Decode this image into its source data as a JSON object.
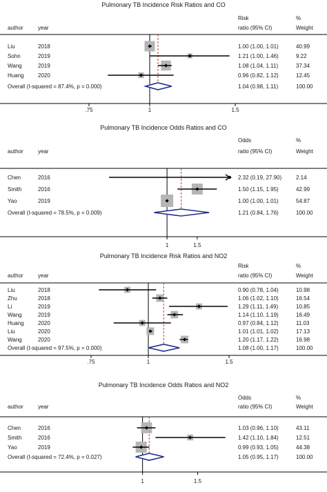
{
  "colors": {
    "text": "#1a1a1a",
    "axis": "#000000",
    "weight_box": "#b5b5b5",
    "point": "#000000",
    "ci_line": "#000000",
    "pooled_diamond": "#1f2e8f",
    "overall_ref_line": "#c0392b"
  },
  "chart_data": [
    {
      "type": "forest",
      "title": "Pulmonary TB Incidence Risk Ratios and CO",
      "headers": {
        "author": "author",
        "year": "year",
        "effect_top": "Risk",
        "effect_bottom": "ratio (95% CI)",
        "weight_top": "%",
        "weight_bottom": "Weight"
      },
      "axis": {
        "min": 0.75,
        "max": 1.5,
        "ticks": [
          0.75,
          1,
          1.5
        ],
        "tick_labels": [
          ".75",
          "1",
          "1.5"
        ],
        "null_value": 1
      },
      "studies": [
        {
          "author": "Liu",
          "year": "2018",
          "estimate": 1.0,
          "lower": 1.0,
          "upper": 1.01,
          "label": "1.00 (1.00, 1.01)",
          "weight": 40.99,
          "weight_label": "40.99"
        },
        {
          "author": "Sohn",
          "year": "2019",
          "estimate": 1.21,
          "lower": 1.0,
          "upper": 1.46,
          "label": "1.21 (1.00, 1.46)",
          "weight": 9.22,
          "weight_label": "9.22"
        },
        {
          "author": "Wang",
          "year": "2019",
          "estimate": 1.08,
          "lower": 1.04,
          "upper": 1.11,
          "label": "1.08 (1.04, 1.11)",
          "weight": 37.34,
          "weight_label": "37.34"
        },
        {
          "author": "Huang",
          "year": "2020",
          "estimate": 0.96,
          "lower": 0.82,
          "upper": 1.12,
          "label": "0.96 (0.82, 1.12)",
          "weight": 12.45,
          "weight_label": "12.45"
        }
      ],
      "overall": {
        "label_text": "Overall  (I-squared = 87.4%, p = 0.000)",
        "estimate": 1.04,
        "lower": 0.98,
        "upper": 1.11,
        "label": "1.04 (0.98, 1.11)",
        "weight_label": "100.00"
      }
    },
    {
      "type": "forest",
      "title": "Pulmonary TB Incidence Odds Ratios and CO",
      "headers": {
        "author": "author",
        "year": "year",
        "effect_top": "Odds",
        "effect_bottom": "ratio (95% CI)",
        "weight_top": "%",
        "weight_bottom": "Weight"
      },
      "axis": {
        "min": 0.8,
        "max": 2.32,
        "ticks": [
          1,
          1.5
        ],
        "tick_labels": [
          "1",
          "1.5"
        ],
        "null_value": 1,
        "clip_arrow_right": true
      },
      "studies": [
        {
          "author": "Chen",
          "year": "2016",
          "estimate": 2.32,
          "lower": 0.19,
          "upper": 27.9,
          "label": "2.32 (0.19, 27.90)",
          "weight": 2.14,
          "weight_label": "2.14"
        },
        {
          "author": "Smith",
          "year": "2016",
          "estimate": 1.5,
          "lower": 1.15,
          "upper": 1.95,
          "label": "1.50 (1.15, 1.95)",
          "weight": 42.99,
          "weight_label": "42.99"
        },
        {
          "author": "Yao",
          "year": "2019",
          "estimate": 1.0,
          "lower": 1.0,
          "upper": 1.01,
          "label": "1.00 (1.00, 1.01)",
          "weight": 54.87,
          "weight_label": "54.87"
        }
      ],
      "overall": {
        "label_text": "Overall  (I-squared = 78.5%, p = 0.009)",
        "estimate": 1.21,
        "lower": 0.84,
        "upper": 1.76,
        "label": "1.21 (0.84, 1.76)",
        "weight_label": "100.00"
      }
    },
    {
      "type": "forest",
      "title": "Pulmonary TB Incidence Risk Ratios and NO2",
      "headers": {
        "author": "author",
        "year": "year",
        "effect_top": "Risk",
        "effect_bottom": "ratio (95% CI)",
        "weight_top": "%",
        "weight_bottom": "Weight"
      },
      "axis": {
        "min": 0.75,
        "max": 1.5,
        "ticks": [
          0.75,
          1,
          1.5
        ],
        "tick_labels": [
          ".75",
          "1",
          "1.5"
        ],
        "null_value": 1
      },
      "studies": [
        {
          "author": "Liu",
          "year": "2018",
          "estimate": 0.9,
          "lower": 0.78,
          "upper": 1.04,
          "label": "0.90 (0.78, 1.04)",
          "weight": 10.98,
          "weight_label": "10.98"
        },
        {
          "author": "Zhu",
          "year": "2018",
          "estimate": 1.06,
          "lower": 1.02,
          "upper": 1.1,
          "label": "1.06 (1.02, 1.10)",
          "weight": 16.54,
          "weight_label": "16.54"
        },
        {
          "author": "Li",
          "year": "2019",
          "estimate": 1.29,
          "lower": 1.11,
          "upper": 1.49,
          "label": "1.29 (1.11, 1.49)",
          "weight": 10.85,
          "weight_label": "10.85"
        },
        {
          "author": "Wang",
          "year": "2019",
          "estimate": 1.14,
          "lower": 1.1,
          "upper": 1.19,
          "label": "1.14 (1.10, 1.19)",
          "weight": 16.49,
          "weight_label": "16.49"
        },
        {
          "author": "Huang",
          "year": "2020",
          "estimate": 0.97,
          "lower": 0.84,
          "upper": 1.12,
          "label": "0.97 (0.84, 1.12)",
          "weight": 11.03,
          "weight_label": "11.03"
        },
        {
          "author": "Liu",
          "year": "2020",
          "estimate": 1.01,
          "lower": 1.01,
          "upper": 1.02,
          "label": "1.01 (1.01, 1.02)",
          "weight": 17.13,
          "weight_label": "17.13"
        },
        {
          "author": "Wang",
          "year": "2020",
          "estimate": 1.2,
          "lower": 1.17,
          "upper": 1.22,
          "label": "1.20 (1.17, 1.22)",
          "weight": 16.98,
          "weight_label": "16.98"
        }
      ],
      "overall": {
        "label_text": "Overall  (I-squared = 97.5%, p = 0.000)",
        "estimate": 1.08,
        "lower": 1.0,
        "upper": 1.17,
        "label": "1.08 (1.00, 1.17)",
        "weight_label": "100.00"
      }
    },
    {
      "type": "forest",
      "title": "Pulmonary TB Incidence Odds Ratios and NO2",
      "headers": {
        "author": "author",
        "year": "year",
        "effect_top": "Odds",
        "effect_bottom": "ratio (95% CI)",
        "weight_top": "%",
        "weight_bottom": "Weight"
      },
      "axis": {
        "min": 0.75,
        "max": 1.9,
        "ticks": [
          1,
          1.5
        ],
        "tick_labels": [
          "1",
          "1.5"
        ],
        "null_value": 1
      },
      "studies": [
        {
          "author": "Chen",
          "year": "2016",
          "estimate": 1.03,
          "lower": 0.96,
          "upper": 1.1,
          "label": "1.03 (0.96, 1.10)",
          "weight": 43.11,
          "weight_label": "43.11"
        },
        {
          "author": "Smith",
          "year": "2016",
          "estimate": 1.42,
          "lower": 1.1,
          "upper": 1.84,
          "label": "1.42 (1.10, 1.84)",
          "weight": 12.51,
          "weight_label": "12.51"
        },
        {
          "author": "Yao",
          "year": "2019",
          "estimate": 0.99,
          "lower": 0.93,
          "upper": 1.05,
          "label": "0.99 (0.93, 1.05)",
          "weight": 44.38,
          "weight_label": "44.38"
        }
      ],
      "overall": {
        "label_text": "Overall  (I-squared = 72.4%, p = 0.027)",
        "estimate": 1.05,
        "lower": 0.95,
        "upper": 1.17,
        "label": "1.05 (0.95, 1.17)",
        "weight_label": "100.00"
      }
    }
  ]
}
